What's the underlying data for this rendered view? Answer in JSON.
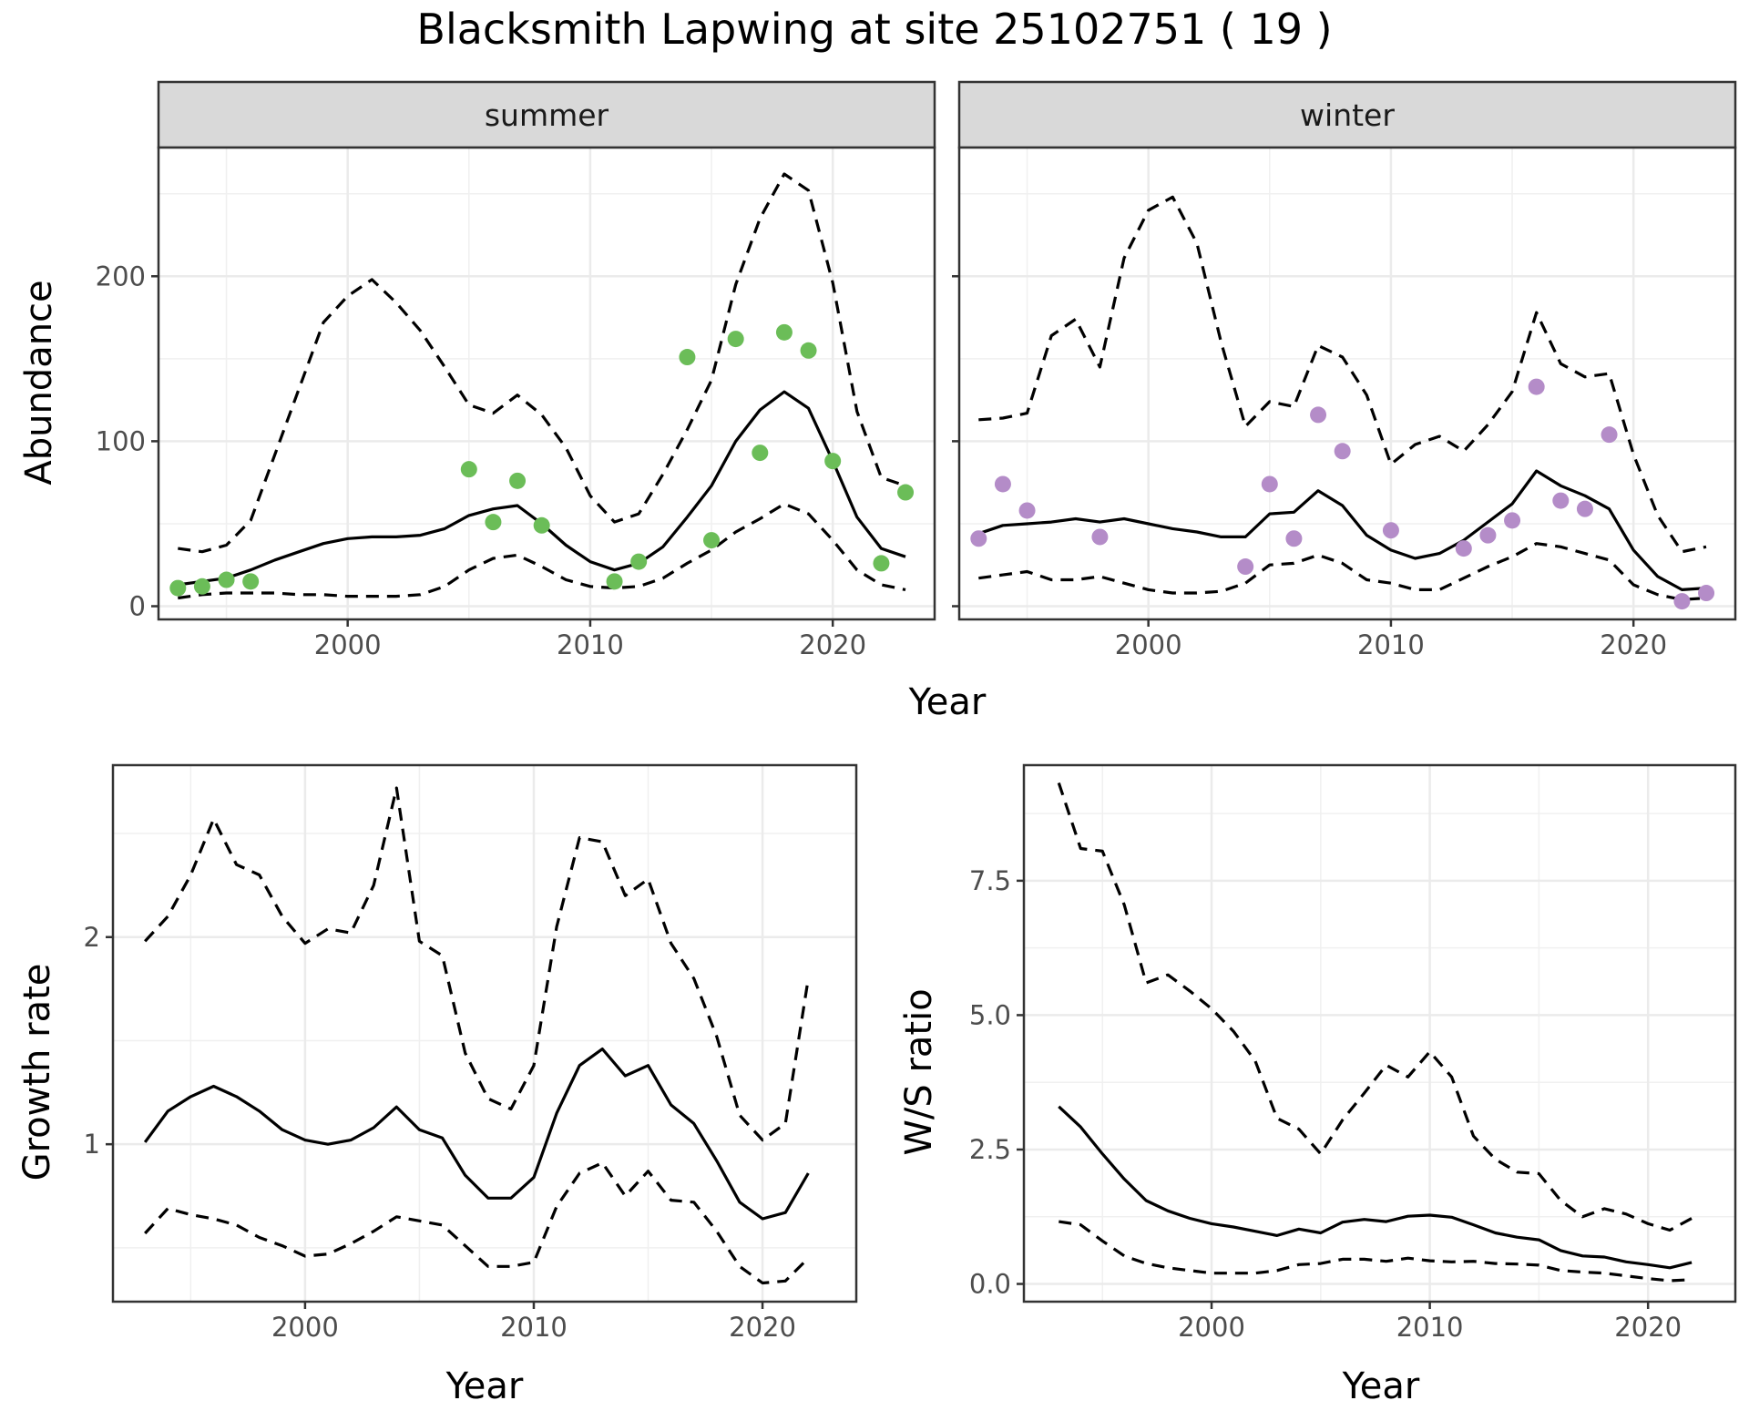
{
  "title": "Blacksmith Lapwing at site 25102751 ( 19 )",
  "colors": {
    "summer_points": "#6bbd58",
    "winter_points": "#b48cc8",
    "lines": "#000000"
  },
  "chart_data": [
    {
      "type": "line",
      "panel": "summer",
      "strip_label": "summer",
      "xlabel": "Year",
      "ylabel": "Abundance",
      "xlim": [
        1992.2,
        2024.2
      ],
      "ylim": [
        -8,
        278
      ],
      "x_ticks": [
        2000,
        2010,
        2020
      ],
      "x_tick_labels": [
        "2000",
        "2010",
        "2020"
      ],
      "y_ticks": [
        0,
        100,
        200
      ],
      "y_tick_labels": [
        "0",
        "100",
        "200"
      ],
      "grid": true,
      "series": [
        {
          "role": "estimate",
          "style": "solid",
          "x": [
            1993,
            1994,
            1995,
            1996,
            1997,
            1998,
            1999,
            2000,
            2001,
            2002,
            2003,
            2004,
            2005,
            2006,
            2007,
            2008,
            2009,
            2010,
            2011,
            2012,
            2013,
            2014,
            2015,
            2016,
            2017,
            2018,
            2019,
            2020,
            2021,
            2022,
            2023
          ],
          "y": [
            13,
            15,
            17,
            22,
            28,
            33,
            38,
            41,
            42,
            42,
            43,
            47,
            55,
            59,
            61,
            50,
            37,
            27,
            22,
            26,
            36,
            54,
            73,
            100,
            119,
            130,
            120,
            88,
            54,
            35,
            30
          ]
        },
        {
          "role": "upper",
          "style": "dashed",
          "x": [
            1993,
            1994,
            1995,
            1996,
            1997,
            1998,
            1999,
            2000,
            2001,
            2002,
            2003,
            2004,
            2005,
            2006,
            2007,
            2008,
            2009,
            2010,
            2011,
            2012,
            2013,
            2014,
            2015,
            2016,
            2017,
            2018,
            2019,
            2020,
            2021,
            2022,
            2023
          ],
          "y": [
            35,
            33,
            37,
            52,
            92,
            132,
            172,
            188,
            198,
            184,
            167,
            145,
            122,
            117,
            128,
            116,
            96,
            67,
            51,
            56,
            80,
            107,
            137,
            195,
            235,
            262,
            252,
            196,
            118,
            78,
            73
          ]
        },
        {
          "role": "lower",
          "style": "dashed",
          "x": [
            1993,
            1994,
            1995,
            1996,
            1997,
            1998,
            1999,
            2000,
            2001,
            2002,
            2003,
            2004,
            2005,
            2006,
            2007,
            2008,
            2009,
            2010,
            2011,
            2012,
            2013,
            2014,
            2015,
            2016,
            2017,
            2018,
            2019,
            2020,
            2021,
            2022,
            2023
          ],
          "y": [
            5,
            7,
            8,
            8,
            8,
            7,
            7,
            6,
            6,
            6,
            7,
            12,
            22,
            29,
            31,
            24,
            16,
            12,
            11,
            12,
            17,
            26,
            34,
            45,
            53,
            62,
            56,
            40,
            22,
            13,
            10
          ]
        }
      ],
      "points": {
        "x": [
          1993,
          1994,
          1995,
          1996,
          2005,
          2006,
          2007,
          2008,
          2011,
          2012,
          2014,
          2015,
          2016,
          2017,
          2018,
          2019,
          2020,
          2022,
          2023
        ],
        "y": [
          11,
          12,
          16,
          15,
          83,
          51,
          76,
          49,
          15,
          27,
          151,
          40,
          162,
          93,
          166,
          155,
          88,
          26,
          69
        ]
      }
    },
    {
      "type": "line",
      "panel": "winter",
      "strip_label": "winter",
      "xlabel": "Year",
      "ylabel": "Abundance",
      "xlim": [
        1992.2,
        2024.2
      ],
      "ylim": [
        -8,
        278
      ],
      "x_ticks": [
        2000,
        2010,
        2020
      ],
      "x_tick_labels": [
        "2000",
        "2010",
        "2020"
      ],
      "grid": true,
      "series": [
        {
          "role": "estimate",
          "style": "solid",
          "x": [
            1993,
            1994,
            1995,
            1996,
            1997,
            1998,
            1999,
            2000,
            2001,
            2002,
            2003,
            2004,
            2005,
            2006,
            2007,
            2008,
            2009,
            2010,
            2011,
            2012,
            2013,
            2014,
            2015,
            2016,
            2017,
            2018,
            2019,
            2020,
            2021,
            2022,
            2023
          ],
          "y": [
            44,
            49,
            50,
            51,
            53,
            51,
            53,
            50,
            47,
            45,
            42,
            42,
            56,
            57,
            70,
            61,
            43,
            34,
            29,
            32,
            40,
            51,
            62,
            82,
            73,
            67,
            59,
            34,
            18,
            10,
            11
          ]
        },
        {
          "role": "upper",
          "style": "dashed",
          "x": [
            1993,
            1994,
            1995,
            1996,
            1997,
            1998,
            1999,
            2000,
            2001,
            2002,
            2003,
            2004,
            2005,
            2006,
            2007,
            2008,
            2009,
            2010,
            2011,
            2012,
            2013,
            2014,
            2015,
            2016,
            2017,
            2018,
            2019,
            2020,
            2021,
            2022,
            2023
          ],
          "y": [
            113,
            114,
            117,
            164,
            174,
            145,
            211,
            240,
            248,
            220,
            160,
            109,
            124,
            121,
            158,
            151,
            128,
            86,
            98,
            103,
            94,
            110,
            130,
            178,
            147,
            139,
            141,
            92,
            55,
            33,
            36
          ]
        },
        {
          "role": "lower",
          "style": "dashed",
          "x": [
            1993,
            1994,
            1995,
            1996,
            1997,
            1998,
            1999,
            2000,
            2001,
            2002,
            2003,
            2004,
            2005,
            2006,
            2007,
            2008,
            2009,
            2010,
            2011,
            2012,
            2013,
            2014,
            2015,
            2016,
            2017,
            2018,
            2019,
            2020,
            2021,
            2022,
            2023
          ],
          "y": [
            17,
            19,
            21,
            16,
            16,
            18,
            14,
            10,
            8,
            8,
            9,
            14,
            25,
            26,
            31,
            26,
            16,
            14,
            10,
            10,
            17,
            24,
            30,
            38,
            36,
            32,
            28,
            13,
            7,
            4,
            5
          ]
        }
      ],
      "points": {
        "x": [
          1993,
          1994,
          1995,
          1998,
          2004,
          2005,
          2006,
          2007,
          2008,
          2010,
          2013,
          2014,
          2015,
          2016,
          2017,
          2018,
          2019,
          2022,
          2023
        ],
        "y": [
          41,
          74,
          58,
          42,
          24,
          74,
          41,
          116,
          94,
          46,
          35,
          43,
          52,
          133,
          64,
          59,
          104,
          3,
          8
        ]
      }
    },
    {
      "type": "line",
      "panel": "growth",
      "xlabel": "Year",
      "ylabel": "Growth rate",
      "xlim": [
        1991.6,
        2024.1
      ],
      "ylim": [
        0.24,
        2.83
      ],
      "x_ticks": [
        2000,
        2010,
        2020
      ],
      "x_tick_labels": [
        "2000",
        "2010",
        "2020"
      ],
      "y_ticks": [
        1,
        2
      ],
      "y_tick_labels": [
        "1",
        "2"
      ],
      "grid": true,
      "series": [
        {
          "role": "estimate",
          "style": "solid",
          "x": [
            1993,
            1994,
            1995,
            1996,
            1997,
            1998,
            1999,
            2000,
            2001,
            2002,
            2003,
            2004,
            2005,
            2006,
            2007,
            2008,
            2009,
            2010,
            2011,
            2012,
            2013,
            2014,
            2015,
            2016,
            2017,
            2018,
            2019,
            2020,
            2021,
            2022
          ],
          "y": [
            1.01,
            1.16,
            1.23,
            1.28,
            1.23,
            1.16,
            1.07,
            1.02,
            1.0,
            1.02,
            1.08,
            1.18,
            1.07,
            1.03,
            0.85,
            0.74,
            0.74,
            0.84,
            1.15,
            1.38,
            1.46,
            1.33,
            1.38,
            1.19,
            1.1,
            0.92,
            0.72,
            0.64,
            0.67,
            0.86
          ]
        },
        {
          "role": "upper",
          "style": "dashed",
          "x": [
            1993,
            1994,
            1995,
            1996,
            1997,
            1998,
            1999,
            2000,
            2001,
            2002,
            2003,
            2004,
            2005,
            2006,
            2007,
            2008,
            2009,
            2010,
            2011,
            2012,
            2013,
            2014,
            2015,
            2016,
            2017,
            2018,
            2019,
            2020,
            2021,
            2022
          ],
          "y": [
            1.98,
            2.1,
            2.3,
            2.57,
            2.35,
            2.3,
            2.1,
            1.97,
            2.04,
            2.02,
            2.25,
            2.72,
            1.98,
            1.91,
            1.44,
            1.22,
            1.17,
            1.38,
            2.05,
            2.48,
            2.46,
            2.2,
            2.28,
            1.97,
            1.8,
            1.52,
            1.14,
            1.02,
            1.1,
            1.8
          ]
        },
        {
          "role": "lower",
          "style": "dashed",
          "x": [
            1993,
            1994,
            1995,
            1996,
            1997,
            1998,
            1999,
            2000,
            2001,
            2002,
            2003,
            2004,
            2005,
            2006,
            2007,
            2008,
            2009,
            2010,
            2011,
            2012,
            2013,
            2014,
            2015,
            2016,
            2017,
            2018,
            2019,
            2020,
            2021,
            2022
          ],
          "y": [
            0.57,
            0.69,
            0.66,
            0.64,
            0.61,
            0.55,
            0.51,
            0.46,
            0.47,
            0.52,
            0.58,
            0.65,
            0.63,
            0.61,
            0.51,
            0.41,
            0.41,
            0.43,
            0.7,
            0.86,
            0.91,
            0.75,
            0.87,
            0.73,
            0.72,
            0.58,
            0.41,
            0.33,
            0.34,
            0.45
          ]
        }
      ]
    },
    {
      "type": "line",
      "panel": "ratio",
      "xlabel": "Year",
      "ylabel": "W/S ratio",
      "xlim": [
        1991.4,
        2024.0
      ],
      "ylim": [
        -0.33,
        9.65
      ],
      "x_ticks": [
        2000,
        2010,
        2020
      ],
      "x_tick_labels": [
        "2000",
        "2010",
        "2020"
      ],
      "y_ticks": [
        0,
        2.5,
        5,
        7.5
      ],
      "y_tick_labels": [
        "0.0",
        "2.5",
        "5.0",
        "7.5"
      ],
      "grid": true,
      "series": [
        {
          "role": "estimate",
          "style": "solid",
          "x": [
            1993,
            1994,
            1995,
            1996,
            1997,
            1998,
            1999,
            2000,
            2001,
            2002,
            2003,
            2004,
            2005,
            2006,
            2007,
            2008,
            2009,
            2010,
            2011,
            2012,
            2013,
            2014,
            2015,
            2016,
            2017,
            2018,
            2019,
            2020,
            2021,
            2022
          ],
          "y": [
            3.3,
            2.92,
            2.42,
            1.95,
            1.55,
            1.36,
            1.22,
            1.12,
            1.06,
            0.98,
            0.9,
            1.02,
            0.95,
            1.15,
            1.2,
            1.16,
            1.26,
            1.28,
            1.24,
            1.1,
            0.95,
            0.87,
            0.82,
            0.62,
            0.52,
            0.5,
            0.41,
            0.36,
            0.3,
            0.4
          ]
        },
        {
          "role": "upper",
          "style": "dashed",
          "x": [
            1993,
            1994,
            1995,
            1996,
            1997,
            1998,
            1999,
            2000,
            2001,
            2002,
            2003,
            2004,
            2005,
            2006,
            2007,
            2008,
            2009,
            2010,
            2011,
            2012,
            2013,
            2014,
            2015,
            2016,
            2017,
            2018,
            2019,
            2020,
            2021,
            2022
          ],
          "y": [
            9.32,
            8.1,
            8.05,
            7.05,
            5.6,
            5.75,
            5.45,
            5.12,
            4.7,
            4.15,
            3.08,
            2.88,
            2.42,
            3.05,
            3.55,
            4.07,
            3.85,
            4.32,
            3.85,
            2.75,
            2.32,
            2.08,
            2.05,
            1.55,
            1.25,
            1.4,
            1.3,
            1.12,
            1.0,
            1.22
          ]
        },
        {
          "role": "lower",
          "style": "dashed",
          "x": [
            1993,
            1994,
            1995,
            1996,
            1997,
            1998,
            1999,
            2000,
            2001,
            2002,
            2003,
            2004,
            2005,
            2006,
            2007,
            2008,
            2009,
            2010,
            2011,
            2012,
            2013,
            2014,
            2015,
            2016,
            2017,
            2018,
            2019,
            2020,
            2021,
            2022
          ],
          "y": [
            1.16,
            1.1,
            0.8,
            0.52,
            0.38,
            0.3,
            0.25,
            0.2,
            0.2,
            0.2,
            0.25,
            0.36,
            0.38,
            0.46,
            0.46,
            0.42,
            0.48,
            0.43,
            0.41,
            0.42,
            0.38,
            0.37,
            0.35,
            0.25,
            0.22,
            0.2,
            0.15,
            0.1,
            0.06,
            0.08
          ]
        }
      ]
    }
  ]
}
